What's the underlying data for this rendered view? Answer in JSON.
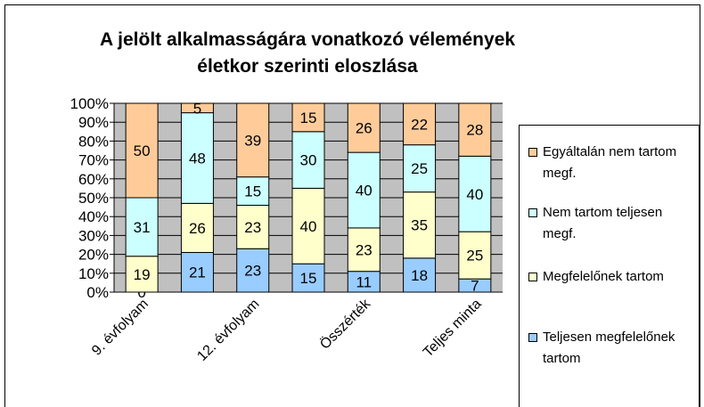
{
  "chart_data": {
    "type": "stacked_bar_100",
    "title": "A jelölt alkalmasságára vonatkozó vélemények életkor szerinti eloszlása",
    "categories": [
      "9. évfolyam",
      null,
      "12. évfolyam",
      null,
      "Összérték",
      null,
      "Teljes minta"
    ],
    "series": [
      {
        "name": "Teljesen megfelelőnek tartom",
        "color": "#99ccff",
        "values": [
          0,
          21,
          23,
          15,
          11,
          18,
          7
        ]
      },
      {
        "name": "Megfelelőnek tartom",
        "color": "#ffffcc",
        "values": [
          19,
          26,
          23,
          40,
          23,
          35,
          25
        ]
      },
      {
        "name": "Nem tartom teljesen megf.",
        "color": "#ccffff",
        "values": [
          31,
          48,
          15,
          30,
          40,
          25,
          40
        ]
      },
      {
        "name": "Egyáltalán nem tartom megf.",
        "color": "#ffcc99",
        "values": [
          50,
          5,
          39,
          15,
          26,
          22,
          28
        ]
      }
    ],
    "ylim": [
      0,
      100
    ],
    "yticks": [
      {
        "value": 0,
        "label": "0%"
      },
      {
        "value": 10,
        "label": "10%"
      },
      {
        "value": 20,
        "label": "20%"
      },
      {
        "value": 30,
        "label": "30%"
      },
      {
        "value": 40,
        "label": "40%"
      },
      {
        "value": 50,
        "label": "50%"
      },
      {
        "value": 60,
        "label": "60%"
      },
      {
        "value": 70,
        "label": "70%"
      },
      {
        "value": 80,
        "label": "80%"
      },
      {
        "value": 90,
        "label": "90%"
      },
      {
        "value": 100,
        "label": "100%"
      }
    ],
    "grid": true,
    "legend": "right"
  }
}
